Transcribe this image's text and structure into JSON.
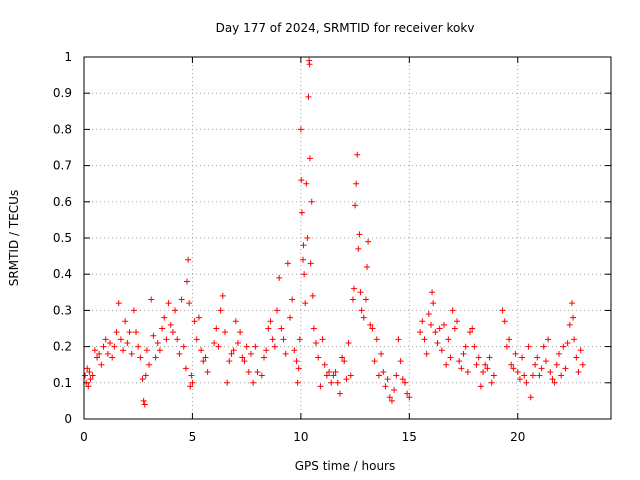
{
  "chart_data": {
    "type": "scatter",
    "title": "Day 177 of 2024, SRMTID for receiver kokv",
    "xlabel": "GPS time / hours",
    "ylabel": "SRMTID / TECUs",
    "xlim": [
      0,
      24.3
    ],
    "ylim": [
      0,
      1
    ],
    "xticks": [
      0,
      5,
      10,
      15,
      20
    ],
    "xtick_labels": [
      "0",
      "5",
      "10",
      "15",
      "20"
    ],
    "yticks": [
      0,
      0.1,
      0.2,
      0.3,
      0.4,
      0.5,
      0.6,
      0.7,
      0.8,
      0.9,
      1
    ],
    "ytick_labels": [
      "0",
      "0.1",
      "0.2",
      "0.3",
      "0.4",
      "0.5",
      "0.6",
      "0.7",
      "0.8",
      "0.9",
      "1"
    ],
    "grid": true,
    "marker": "+",
    "color": "#ff0000",
    "series": [
      {
        "name": "SRMTID",
        "points": [
          [
            0.05,
            0.12
          ],
          [
            0.1,
            0.1
          ],
          [
            0.15,
            0.14
          ],
          [
            0.2,
            0.09
          ],
          [
            0.25,
            0.13
          ],
          [
            0.3,
            0.11
          ],
          [
            0.4,
            0.12
          ],
          [
            0.5,
            0.19
          ],
          [
            0.6,
            0.17
          ],
          [
            0.7,
            0.18
          ],
          [
            0.8,
            0.15
          ],
          [
            0.9,
            0.2
          ],
          [
            1.0,
            0.22
          ],
          [
            1.1,
            0.18
          ],
          [
            1.2,
            0.21
          ],
          [
            1.3,
            0.17
          ],
          [
            1.4,
            0.2
          ],
          [
            1.5,
            0.24
          ],
          [
            1.6,
            0.32
          ],
          [
            1.7,
            0.22
          ],
          [
            1.8,
            0.19
          ],
          [
            1.9,
            0.27
          ],
          [
            2.0,
            0.21
          ],
          [
            2.1,
            0.24
          ],
          [
            2.2,
            0.18
          ],
          [
            2.3,
            0.3
          ],
          [
            2.4,
            0.24
          ],
          [
            2.5,
            0.2
          ],
          [
            2.6,
            0.17
          ],
          [
            2.7,
            0.11
          ],
          [
            2.75,
            0.05
          ],
          [
            2.8,
            0.04
          ],
          [
            2.85,
            0.12
          ],
          [
            2.9,
            0.19
          ],
          [
            3.0,
            0.15
          ],
          [
            3.1,
            0.33
          ],
          [
            3.2,
            0.23
          ],
          [
            3.3,
            0.17
          ],
          [
            3.4,
            0.21
          ],
          [
            3.5,
            0.19
          ],
          [
            3.6,
            0.25
          ],
          [
            3.7,
            0.28
          ],
          [
            3.8,
            0.22
          ],
          [
            3.9,
            0.32
          ],
          [
            4.0,
            0.26
          ],
          [
            4.1,
            0.24
          ],
          [
            4.2,
            0.3
          ],
          [
            4.3,
            0.22
          ],
          [
            4.4,
            0.18
          ],
          [
            4.5,
            0.33
          ],
          [
            4.6,
            0.2
          ],
          [
            4.7,
            0.14
          ],
          [
            4.75,
            0.38
          ],
          [
            4.8,
            0.44
          ],
          [
            4.85,
            0.32
          ],
          [
            4.9,
            0.09
          ],
          [
            4.95,
            0.12
          ],
          [
            5.0,
            0.1
          ],
          [
            5.1,
            0.27
          ],
          [
            5.2,
            0.22
          ],
          [
            5.3,
            0.28
          ],
          [
            5.4,
            0.19
          ],
          [
            5.5,
            0.16
          ],
          [
            5.6,
            0.17
          ],
          [
            5.7,
            0.13
          ],
          [
            6.0,
            0.21
          ],
          [
            6.1,
            0.25
          ],
          [
            6.2,
            0.2
          ],
          [
            6.3,
            0.3
          ],
          [
            6.4,
            0.34
          ],
          [
            6.5,
            0.24
          ],
          [
            6.6,
            0.1
          ],
          [
            6.7,
            0.16
          ],
          [
            6.8,
            0.18
          ],
          [
            6.9,
            0.19
          ],
          [
            7.0,
            0.27
          ],
          [
            7.1,
            0.21
          ],
          [
            7.2,
            0.24
          ],
          [
            7.3,
            0.17
          ],
          [
            7.4,
            0.16
          ],
          [
            7.5,
            0.2
          ],
          [
            7.6,
            0.13
          ],
          [
            7.7,
            0.18
          ],
          [
            7.8,
            0.1
          ],
          [
            7.9,
            0.2
          ],
          [
            8.0,
            0.13
          ],
          [
            8.2,
            0.12
          ],
          [
            8.3,
            0.17
          ],
          [
            8.4,
            0.19
          ],
          [
            8.5,
            0.25
          ],
          [
            8.6,
            0.27
          ],
          [
            8.7,
            0.22
          ],
          [
            8.8,
            0.2
          ],
          [
            8.9,
            0.3
          ],
          [
            9.0,
            0.39
          ],
          [
            9.1,
            0.25
          ],
          [
            9.2,
            0.22
          ],
          [
            9.3,
            0.18
          ],
          [
            9.4,
            0.43
          ],
          [
            9.5,
            0.28
          ],
          [
            9.6,
            0.33
          ],
          [
            9.7,
            0.19
          ],
          [
            9.8,
            0.16
          ],
          [
            9.85,
            0.1
          ],
          [
            9.9,
            0.14
          ],
          [
            9.95,
            0.22
          ],
          [
            10.0,
            0.8
          ],
          [
            10.02,
            0.66
          ],
          [
            10.05,
            0.57
          ],
          [
            10.1,
            0.44
          ],
          [
            10.12,
            0.48
          ],
          [
            10.15,
            0.4
          ],
          [
            10.2,
            0.32
          ],
          [
            10.25,
            0.65
          ],
          [
            10.3,
            0.5
          ],
          [
            10.35,
            0.89
          ],
          [
            10.38,
            0.99
          ],
          [
            10.4,
            0.98
          ],
          [
            10.42,
            0.72
          ],
          [
            10.45,
            0.43
          ],
          [
            10.5,
            0.6
          ],
          [
            10.55,
            0.34
          ],
          [
            10.6,
            0.25
          ],
          [
            10.7,
            0.21
          ],
          [
            10.8,
            0.17
          ],
          [
            10.9,
            0.09
          ],
          [
            11.0,
            0.22
          ],
          [
            11.1,
            0.15
          ],
          [
            11.2,
            0.12
          ],
          [
            11.3,
            0.13
          ],
          [
            11.4,
            0.1
          ],
          [
            11.5,
            0.12
          ],
          [
            11.6,
            0.13
          ],
          [
            11.7,
            0.1
          ],
          [
            11.8,
            0.07
          ],
          [
            11.9,
            0.17
          ],
          [
            12.0,
            0.16
          ],
          [
            12.1,
            0.11
          ],
          [
            12.2,
            0.21
          ],
          [
            12.3,
            0.12
          ],
          [
            12.4,
            0.33
          ],
          [
            12.45,
            0.36
          ],
          [
            12.5,
            0.59
          ],
          [
            12.55,
            0.65
          ],
          [
            12.6,
            0.73
          ],
          [
            12.65,
            0.47
          ],
          [
            12.7,
            0.51
          ],
          [
            12.75,
            0.35
          ],
          [
            12.8,
            0.3
          ],
          [
            12.9,
            0.28
          ],
          [
            13.0,
            0.33
          ],
          [
            13.05,
            0.42
          ],
          [
            13.1,
            0.49
          ],
          [
            13.2,
            0.26
          ],
          [
            13.3,
            0.25
          ],
          [
            13.4,
            0.16
          ],
          [
            13.5,
            0.22
          ],
          [
            13.6,
            0.12
          ],
          [
            13.7,
            0.18
          ],
          [
            13.8,
            0.13
          ],
          [
            13.9,
            0.09
          ],
          [
            14.0,
            0.11
          ],
          [
            14.1,
            0.06
          ],
          [
            14.2,
            0.05
          ],
          [
            14.3,
            0.08
          ],
          [
            14.4,
            0.12
          ],
          [
            14.5,
            0.22
          ],
          [
            14.6,
            0.16
          ],
          [
            14.7,
            0.11
          ],
          [
            14.8,
            0.1
          ],
          [
            14.9,
            0.07
          ],
          [
            15.0,
            0.06
          ],
          [
            15.5,
            0.24
          ],
          [
            15.6,
            0.27
          ],
          [
            15.7,
            0.22
          ],
          [
            15.8,
            0.18
          ],
          [
            15.9,
            0.29
          ],
          [
            16.0,
            0.26
          ],
          [
            16.05,
            0.35
          ],
          [
            16.1,
            0.32
          ],
          [
            16.2,
            0.24
          ],
          [
            16.3,
            0.21
          ],
          [
            16.4,
            0.25
          ],
          [
            16.5,
            0.19
          ],
          [
            16.6,
            0.26
          ],
          [
            16.7,
            0.15
          ],
          [
            16.8,
            0.22
          ],
          [
            16.9,
            0.17
          ],
          [
            17.0,
            0.3
          ],
          [
            17.1,
            0.25
          ],
          [
            17.2,
            0.27
          ],
          [
            17.3,
            0.16
          ],
          [
            17.4,
            0.14
          ],
          [
            17.5,
            0.18
          ],
          [
            17.6,
            0.2
          ],
          [
            17.7,
            0.13
          ],
          [
            17.8,
            0.24
          ],
          [
            17.9,
            0.25
          ],
          [
            18.0,
            0.2
          ],
          [
            18.1,
            0.15
          ],
          [
            18.2,
            0.17
          ],
          [
            18.3,
            0.09
          ],
          [
            18.4,
            0.13
          ],
          [
            18.5,
            0.15
          ],
          [
            18.6,
            0.14
          ],
          [
            18.7,
            0.17
          ],
          [
            18.8,
            0.1
          ],
          [
            18.9,
            0.12
          ],
          [
            19.3,
            0.3
          ],
          [
            19.4,
            0.27
          ],
          [
            19.5,
            0.2
          ],
          [
            19.6,
            0.22
          ],
          [
            19.7,
            0.15
          ],
          [
            19.8,
            0.14
          ],
          [
            19.9,
            0.18
          ],
          [
            20.0,
            0.13
          ],
          [
            20.1,
            0.11
          ],
          [
            20.2,
            0.17
          ],
          [
            20.3,
            0.12
          ],
          [
            20.4,
            0.1
          ],
          [
            20.5,
            0.2
          ],
          [
            20.6,
            0.06
          ],
          [
            20.7,
            0.12
          ],
          [
            20.8,
            0.15
          ],
          [
            20.9,
            0.17
          ],
          [
            21.0,
            0.12
          ],
          [
            21.1,
            0.14
          ],
          [
            21.2,
            0.2
          ],
          [
            21.3,
            0.16
          ],
          [
            21.4,
            0.22
          ],
          [
            21.5,
            0.13
          ],
          [
            21.6,
            0.11
          ],
          [
            21.7,
            0.1
          ],
          [
            21.8,
            0.15
          ],
          [
            21.9,
            0.18
          ],
          [
            22.0,
            0.12
          ],
          [
            22.1,
            0.2
          ],
          [
            22.2,
            0.14
          ],
          [
            22.3,
            0.21
          ],
          [
            22.4,
            0.26
          ],
          [
            22.5,
            0.32
          ],
          [
            22.55,
            0.28
          ],
          [
            22.6,
            0.22
          ],
          [
            22.7,
            0.17
          ],
          [
            22.8,
            0.13
          ],
          [
            22.9,
            0.19
          ],
          [
            23.0,
            0.15
          ]
        ]
      }
    ]
  }
}
